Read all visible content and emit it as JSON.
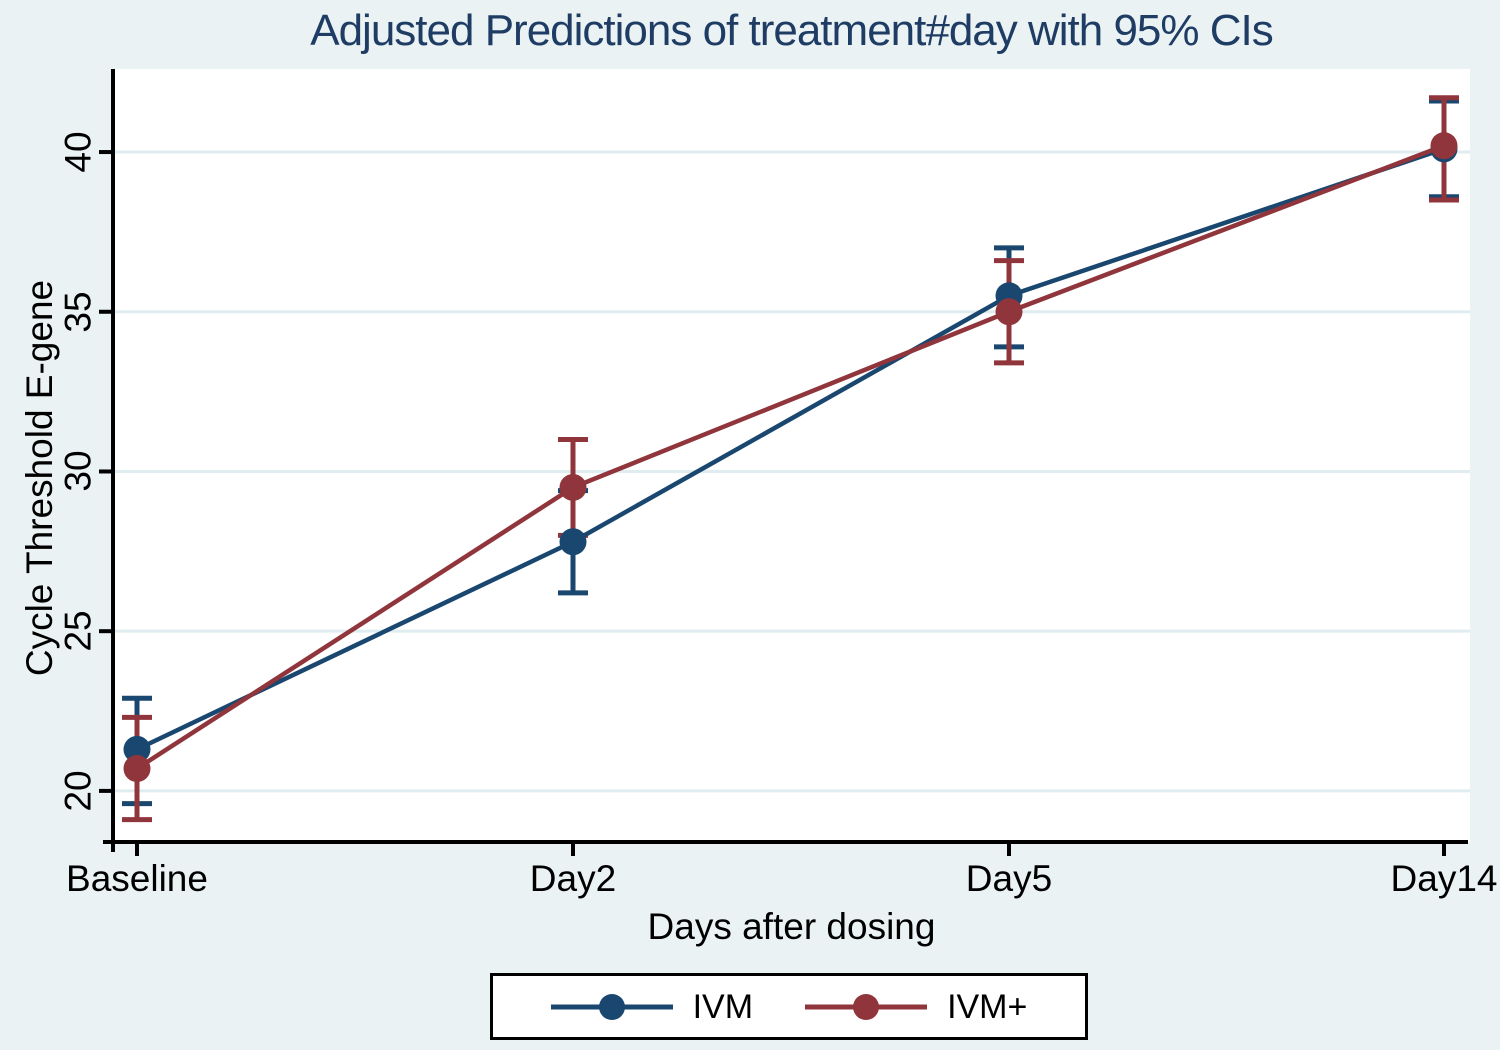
{
  "title": "Adjusted Predictions of treatment#day with 95% CIs",
  "chart_data": {
    "type": "line",
    "title": "Adjusted Predictions of treatment#day with 95% CIs",
    "xlabel": "Days after dosing",
    "ylabel": "Cycle Threshold E-gene",
    "categories": [
      "Baseline",
      "Day2",
      "Day5",
      "Day14"
    ],
    "yticks": [
      20,
      25,
      30,
      35,
      40
    ],
    "ylim": [
      18.4,
      42.6
    ],
    "grid": true,
    "error_bars": "95% CIs",
    "legend_position": "bottom",
    "series": [
      {
        "name": "IVM",
        "color": "#1a476f",
        "values": [
          21.3,
          27.8,
          35.5,
          40.1
        ],
        "ci_low": [
          19.6,
          26.2,
          33.9,
          38.6
        ],
        "ci_high": [
          22.9,
          29.4,
          37.0,
          41.6
        ]
      },
      {
        "name": "IVM+",
        "color": "#90353b",
        "values": [
          20.7,
          29.5,
          35.0,
          40.2
        ],
        "ci_low": [
          19.1,
          28.0,
          33.4,
          38.5
        ],
        "ci_high": [
          22.3,
          31.0,
          36.6,
          41.7
        ]
      }
    ]
  },
  "colors": {
    "background": "#eaf2f3",
    "plot_background": "#ffffff",
    "grid": "#e0edf0",
    "axis": "#000000",
    "title": "#1e3c64",
    "tick_text": "#000000"
  },
  "legend": {
    "items": [
      {
        "label": "IVM",
        "color": "#1a476f"
      },
      {
        "label": "IVM+",
        "color": "#90353b"
      }
    ]
  }
}
